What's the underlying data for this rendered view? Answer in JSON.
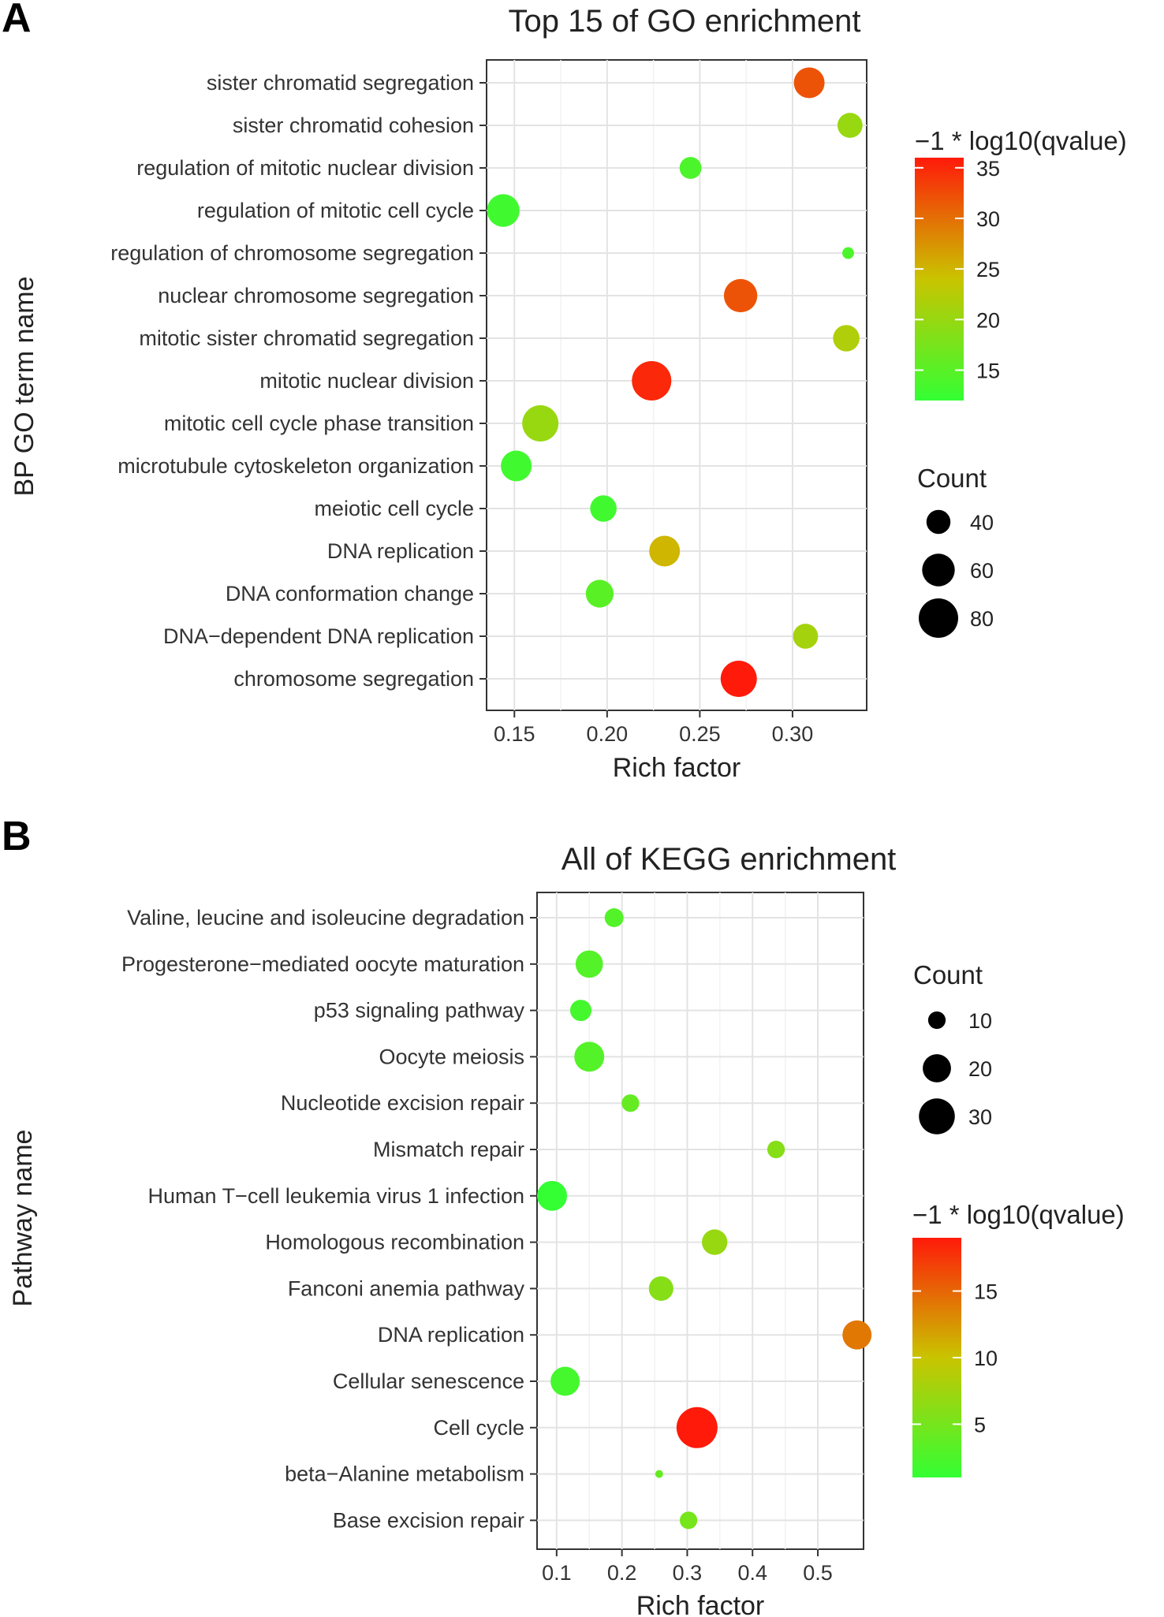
{
  "figure": {
    "panels": [
      "A",
      "B"
    ]
  },
  "chart_data": [
    {
      "panel": "A",
      "type": "scatter",
      "title": "Top 15 of GO enrichment",
      "xlabel": "Rich factor",
      "ylabel": "BP GO term name",
      "xlim": [
        0.135,
        0.34
      ],
      "xticks": [
        0.15,
        0.2,
        0.25,
        0.3
      ],
      "xtick_labels": [
        "0.15",
        "0.20",
        "0.25",
        "0.30"
      ],
      "grid": true,
      "categories": [
        "sister chromatid segregation",
        "sister chromatid cohesion",
        "regulation of mitotic nuclear division",
        "regulation of mitotic cell cycle",
        "regulation of chromosome segregation",
        "nuclear chromosome segregation",
        "mitotic sister chromatid segregation",
        "mitotic nuclear division",
        "mitotic cell cycle phase transition",
        "microtubule cytoskeleton organization",
        "meiotic cell cycle",
        "DNA replication",
        "DNA conformation change",
        "DNA−dependent DNA replication",
        "chromosome segregation"
      ],
      "x": [
        0.309,
        0.331,
        0.245,
        0.144,
        0.33,
        0.272,
        0.329,
        0.224,
        0.164,
        0.151,
        0.198,
        0.231,
        0.196,
        0.307,
        0.271
      ],
      "count": [
        55,
        42,
        36,
        60,
        22,
        62,
        45,
        80,
        70,
        55,
        45,
        55,
        48,
        42,
        70
      ],
      "qvalue_score": [
        32,
        20,
        14,
        13,
        14,
        32,
        22,
        35,
        20,
        13,
        13,
        25,
        15,
        21,
        36
      ],
      "color_legend": {
        "title": "−1 * log10(qvalue)",
        "min": 12,
        "max": 36,
        "ticks": [
          15,
          20,
          25,
          30,
          35
        ],
        "tick_labels": [
          "15",
          "20",
          "25",
          "30",
          "35"
        ],
        "color_low": "#33ff33",
        "color_mid": "#c9c400",
        "color_high": "#ff1a0a"
      },
      "size_legend": {
        "title": "Count",
        "values": [
          40,
          60,
          80
        ],
        "labels": [
          "40",
          "60",
          "80"
        ],
        "min_count": 20,
        "max_count": 80
      }
    },
    {
      "panel": "B",
      "type": "scatter",
      "title": "All of KEGG enrichment",
      "xlabel": "Rich factor",
      "ylabel": "Pathway name",
      "xlim": [
        0.07,
        0.57
      ],
      "xticks": [
        0.1,
        0.2,
        0.3,
        0.4,
        0.5
      ],
      "xtick_labels": [
        "0.1",
        "0.2",
        "0.3",
        "0.4",
        "0.5"
      ],
      "grid": true,
      "categories": [
        "Valine, leucine and isoleucine degradation",
        "Progesterone−mediated oocyte maturation",
        "p53 signaling pathway",
        "Oocyte meiosis",
        "Nucleotide excision repair",
        "Mismatch repair",
        "Human T−cell leukemia virus 1 infection",
        "Homologous recombination",
        "Fanconi anemia pathway",
        "DNA replication",
        "Cellular senescence",
        "Cell cycle",
        "beta−Alanine metabolism",
        "Base excision repair"
      ],
      "x": [
        0.188,
        0.15,
        0.137,
        0.15,
        0.213,
        0.436,
        0.093,
        0.342,
        0.26,
        0.56,
        0.113,
        0.315,
        0.257,
        0.302
      ],
      "count": [
        11,
        19,
        13,
        22,
        10,
        10,
        22,
        17,
        16,
        21,
        21,
        38,
        5,
        10
      ],
      "qvalue_score": [
        3,
        3,
        2,
        3,
        4,
        6,
        1,
        7,
        6,
        14,
        2,
        19,
        4,
        5
      ],
      "color_legend": {
        "title": "−1 * log10(qvalue)",
        "min": 1,
        "max": 19,
        "ticks": [
          5,
          10,
          15
        ],
        "tick_labels": [
          "5",
          "10",
          "15"
        ],
        "color_low": "#33ff33",
        "color_mid": "#c9c400",
        "color_high": "#ff1a0a"
      },
      "size_legend": {
        "title": "Count",
        "values": [
          10,
          20,
          30
        ],
        "labels": [
          "10",
          "20",
          "30"
        ],
        "min_count": 5,
        "max_count": 38
      }
    }
  ]
}
